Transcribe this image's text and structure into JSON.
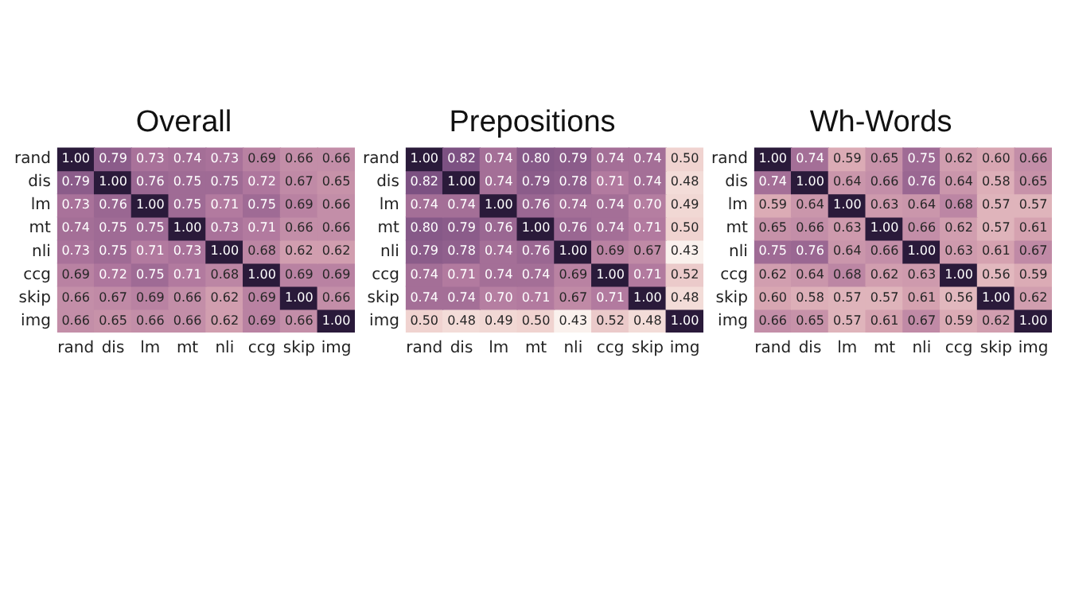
{
  "chart_data": [
    {
      "type": "heatmap",
      "title": "Overall",
      "data_labels": true,
      "categories": [
        "rand",
        "dis",
        "lm",
        "mt",
        "nli",
        "ccg",
        "skip",
        "img"
      ],
      "y_categories": [
        "rand",
        "dis",
        "lm",
        "mt",
        "nli",
        "ccg",
        "skip",
        "img"
      ],
      "cells": [
        [
          1.0,
          0.79,
          0.73,
          0.74,
          0.73,
          0.69,
          0.66,
          0.66
        ],
        [
          0.79,
          1.0,
          0.76,
          0.75,
          0.75,
          0.72,
          0.67,
          0.65
        ],
        [
          0.73,
          0.76,
          1.0,
          0.75,
          0.71,
          0.75,
          0.69,
          0.66
        ],
        [
          0.74,
          0.75,
          0.75,
          1.0,
          0.73,
          0.71,
          0.66,
          0.66
        ],
        [
          0.73,
          0.75,
          0.71,
          0.73,
          1.0,
          0.68,
          0.62,
          0.62
        ],
        [
          0.69,
          0.72,
          0.75,
          0.71,
          0.68,
          1.0,
          0.69,
          0.69
        ],
        [
          0.66,
          0.67,
          0.69,
          0.66,
          0.62,
          0.69,
          1.0,
          0.66
        ],
        [
          0.66,
          0.65,
          0.66,
          0.66,
          0.62,
          0.69,
          0.66,
          1.0
        ]
      ],
      "cell_labels": [
        [
          "1.00",
          "0.79",
          "0.73",
          "0.74",
          "0.73",
          "0.69",
          "0.66",
          "0.66"
        ],
        [
          "0.79",
          "1.00",
          "0.76",
          "0.75",
          "0.75",
          "0.72",
          "0.67",
          "0.65"
        ],
        [
          "0.73",
          "0.76",
          "1.00",
          "0.75",
          "0.71",
          "0.75",
          "0.69",
          "0.66"
        ],
        [
          "0.74",
          "0.75",
          "0.75",
          "1.00",
          "0.73",
          "0.71",
          "0.66",
          "0.66"
        ],
        [
          "0.73",
          "0.75",
          "0.71",
          "0.73",
          "1.00",
          "0.68",
          "0.62",
          "0.62"
        ],
        [
          "0.69",
          "0.72",
          "0.75",
          "0.71",
          "0.68",
          "1.00",
          "0.69",
          "0.69"
        ],
        [
          "0.66",
          "0.67",
          "0.69",
          "0.66",
          "0.62",
          "0.69",
          "1.00",
          "0.66"
        ],
        [
          "0.66",
          "0.65",
          "0.66",
          "0.66",
          "0.62",
          "0.69",
          "0.66",
          "1.00"
        ]
      ]
    },
    {
      "type": "heatmap",
      "title": "Prepositions",
      "data_labels": true,
      "categories": [
        "rand",
        "dis",
        "lm",
        "mt",
        "nli",
        "ccg",
        "skip",
        "img"
      ],
      "y_categories": [
        "rand",
        "dis",
        "lm",
        "mt",
        "nli",
        "ccg",
        "skip",
        "img"
      ],
      "cells": [
        [
          1.0,
          0.82,
          0.74,
          0.8,
          0.79,
          0.74,
          0.74,
          0.5
        ],
        [
          0.82,
          1.0,
          0.74,
          0.79,
          0.78,
          0.71,
          0.74,
          0.48
        ],
        [
          0.74,
          0.74,
          1.0,
          0.76,
          0.74,
          0.74,
          0.7,
          0.49
        ],
        [
          0.8,
          0.79,
          0.76,
          1.0,
          0.76,
          0.74,
          0.71,
          0.5
        ],
        [
          0.79,
          0.78,
          0.74,
          0.76,
          1.0,
          0.69,
          0.67,
          0.43
        ],
        [
          0.74,
          0.71,
          0.74,
          0.74,
          0.69,
          1.0,
          0.71,
          0.52
        ],
        [
          0.74,
          0.74,
          0.7,
          0.71,
          0.67,
          0.71,
          1.0,
          0.48
        ],
        [
          0.5,
          0.48,
          0.49,
          0.5,
          0.43,
          0.52,
          0.48,
          1.0
        ]
      ],
      "cell_labels": [
        [
          "1.00",
          "0.82",
          "0.74",
          "0.80",
          "0.79",
          "0.74",
          "0.74",
          "0.50"
        ],
        [
          "0.82",
          "1.00",
          "0.74",
          "0.79",
          "0.78",
          "0.71",
          "0.74",
          "0.48"
        ],
        [
          "0.74",
          "0.74",
          "1.00",
          "0.76",
          "0.74",
          "0.74",
          "0.70",
          "0.49"
        ],
        [
          "0.80",
          "0.79",
          "0.76",
          "1.00",
          "0.76",
          "0.74",
          "0.71",
          "0.50"
        ],
        [
          "0.79",
          "0.78",
          "0.74",
          "0.76",
          "1.00",
          "0.69",
          "0.67",
          "0.43"
        ],
        [
          "0.74",
          "0.71",
          "0.74",
          "0.74",
          "0.69",
          "1.00",
          "0.71",
          "0.52"
        ],
        [
          "0.74",
          "0.74",
          "0.70",
          "0.71",
          "0.67",
          "0.71",
          "1.00",
          "0.48"
        ],
        [
          "0.50",
          "0.48",
          "0.49",
          "0.50",
          "0.43",
          "0.52",
          "0.48",
          "1.00"
        ]
      ]
    },
    {
      "type": "heatmap",
      "title": "Wh-Words",
      "data_labels": true,
      "categories": [
        "rand",
        "dis",
        "lm",
        "mt",
        "nli",
        "ccg",
        "skip",
        "img"
      ],
      "y_categories": [
        "rand",
        "dis",
        "lm",
        "mt",
        "nli",
        "ccg",
        "skip",
        "img"
      ],
      "cells": [
        [
          1.0,
          0.74,
          0.59,
          0.65,
          0.75,
          0.62,
          0.6,
          0.66
        ],
        [
          0.74,
          1.0,
          0.64,
          0.66,
          0.76,
          0.64,
          0.58,
          0.65
        ],
        [
          0.59,
          0.64,
          1.0,
          0.63,
          0.64,
          0.68,
          0.57,
          0.57
        ],
        [
          0.65,
          0.66,
          0.63,
          1.0,
          0.66,
          0.62,
          0.57,
          0.61
        ],
        [
          0.75,
          0.76,
          0.64,
          0.66,
          1.0,
          0.63,
          0.61,
          0.67
        ],
        [
          0.62,
          0.64,
          0.68,
          0.62,
          0.63,
          1.0,
          0.56,
          0.59
        ],
        [
          0.6,
          0.58,
          0.57,
          0.57,
          0.61,
          0.56,
          1.0,
          0.62
        ],
        [
          0.66,
          0.65,
          0.57,
          0.61,
          0.67,
          0.59,
          0.62,
          1.0
        ]
      ],
      "cell_labels": [
        [
          "1.00",
          "0.74",
          "0.59",
          "0.65",
          "0.75",
          "0.62",
          "0.60",
          "0.66"
        ],
        [
          "0.74",
          "1.00",
          "0.64",
          "0.66",
          "0.76",
          "0.64",
          "0.58",
          "0.65"
        ],
        [
          "0.59",
          "0.64",
          "1.00",
          "0.63",
          "0.64",
          "0.68",
          "0.57",
          "0.57"
        ],
        [
          "0.65",
          "0.66",
          "0.63",
          "1.00",
          "0.66",
          "0.62",
          "0.57",
          "0.61"
        ],
        [
          "0.75",
          "0.76",
          "0.64",
          "0.66",
          "1.00",
          "0.63",
          "0.61",
          "0.67"
        ],
        [
          "0.62",
          "0.64",
          "0.68",
          "0.62",
          "0.63",
          "1.00",
          "0.56",
          "0.59"
        ],
        [
          "0.60",
          "0.58",
          "0.57",
          "0.57",
          "0.61",
          "0.56",
          "1.00",
          "0.62"
        ],
        [
          "0.66",
          "0.65",
          "0.57",
          "0.61",
          "0.67",
          "0.59",
          "0.62",
          "1.00"
        ]
      ]
    }
  ]
}
